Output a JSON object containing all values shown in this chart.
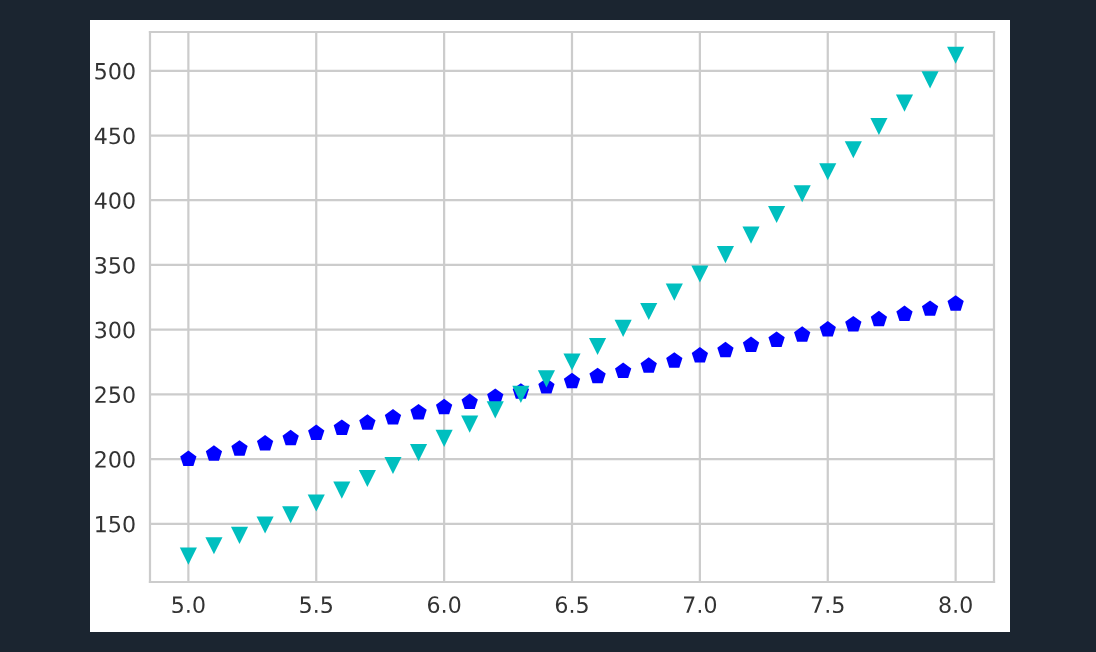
{
  "chart_data": {
    "type": "scatter",
    "x": [
      5.0,
      5.1,
      5.2,
      5.3,
      5.4,
      5.5,
      5.6,
      5.7,
      5.8,
      5.9,
      6.0,
      6.1,
      6.2,
      6.3,
      6.4,
      6.5,
      6.6,
      6.7,
      6.8,
      6.9,
      7.0,
      7.1,
      7.2,
      7.3,
      7.4,
      7.5,
      7.6,
      7.7,
      7.8,
      7.9,
      8.0
    ],
    "series": [
      {
        "color": "#0000ff",
        "values": [
          200,
          204,
          208,
          212,
          216,
          220,
          224,
          228,
          232,
          236,
          240,
          244,
          248,
          252,
          256,
          260,
          264,
          268,
          272,
          276,
          280,
          284,
          288,
          292,
          296,
          300,
          304,
          308,
          312,
          316,
          320
        ]
      },
      {
        "color": "#00bfbf",
        "marker": "triangle",
        "values": [
          125,
          133,
          141,
          149,
          157,
          166,
          176,
          185,
          195,
          205,
          216,
          227,
          238,
          250,
          262,
          275,
          287,
          301,
          314,
          329,
          343,
          358,
          373,
          389,
          405,
          422,
          439,
          457,
          475,
          493,
          512
        ]
      }
    ],
    "xlim": [
      4.85,
      8.15
    ],
    "ylim": [
      105,
      530
    ],
    "xticks": [
      {
        "value": 5.0,
        "label": "5.0"
      },
      {
        "value": 5.5,
        "label": "5.5"
      },
      {
        "value": 6.0,
        "label": "6.0"
      },
      {
        "value": 6.5,
        "label": "6.5"
      },
      {
        "value": 7.0,
        "label": "7.0"
      },
      {
        "value": 7.5,
        "label": "7.5"
      },
      {
        "value": 8.0,
        "label": "8.0"
      }
    ],
    "yticks": [
      150,
      200,
      250,
      300,
      350,
      400,
      450,
      500
    ],
    "grid": true,
    "legend": false
  }
}
